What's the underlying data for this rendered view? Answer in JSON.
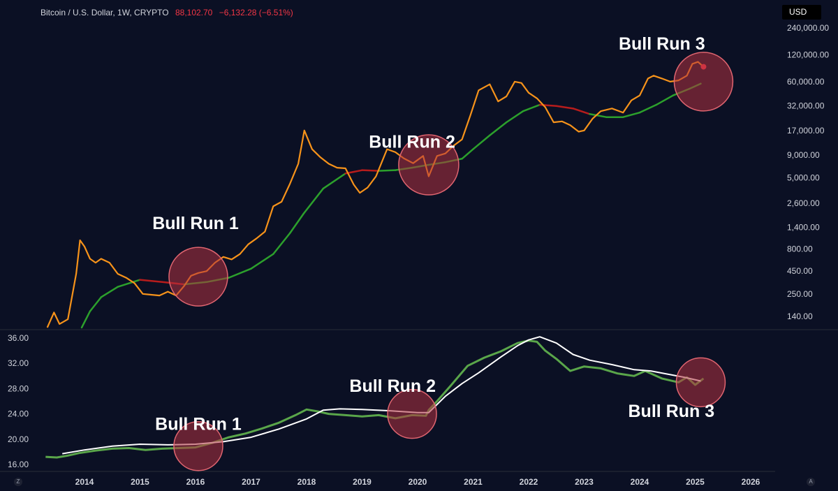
{
  "header": {
    "symbol": "Bitcoin / U.S. Dollar, 1W, CRYPTO",
    "price": "88,102.70",
    "change": "−6,132.28 (−6.51%)"
  },
  "currency_button": "USD",
  "corner_left": "Z",
  "corner_right": "A",
  "colors": {
    "background": "#0b1024",
    "price_line": "#f7931a",
    "ma_green": "#2ca02c",
    "ma_red": "#b71c1c",
    "lower_series": "#5aa64a",
    "lower_ma": "#ffffff",
    "circle_fill": "#b2323f",
    "circle_stroke": "#e06570"
  },
  "chart_data": [
    {
      "type": "line",
      "panel": "upper",
      "title": "",
      "scale": "log",
      "x_ticks": [
        "2014",
        "2015",
        "2016",
        "2017",
        "2018",
        "2019",
        "2020",
        "2021",
        "2022",
        "2023",
        "2024",
        "2025",
        "2026"
      ],
      "y_ticks": [
        "240,000.00",
        "120,000.00",
        "60,000.00",
        "32,000.00",
        "17,000.00",
        "9,000.00",
        "5,000.00",
        "2,600.00",
        "1,400.00",
        "800.00",
        "450.00",
        "250.00",
        "140.00"
      ],
      "ylim": [
        110,
        260000
      ],
      "series": [
        {
          "role": "price",
          "x": [
            2013.33,
            2013.45,
            2013.55,
            2013.7,
            2013.85,
            2013.92,
            2014.0,
            2014.1,
            2014.2,
            2014.3,
            2014.45,
            2014.6,
            2014.75,
            2014.9,
            2015.05,
            2015.2,
            2015.35,
            2015.5,
            2015.65,
            2015.8,
            2015.92,
            2016.05,
            2016.2,
            2016.35,
            2016.5,
            2016.65,
            2016.8,
            2016.95,
            2017.1,
            2017.25,
            2017.4,
            2017.55,
            2017.7,
            2017.85,
            2017.96,
            2018.1,
            2018.25,
            2018.4,
            2018.55,
            2018.7,
            2018.85,
            2018.96,
            2019.1,
            2019.25,
            2019.45,
            2019.6,
            2019.75,
            2019.92,
            2020.1,
            2020.2,
            2020.35,
            2020.5,
            2020.65,
            2020.8,
            2020.95,
            2021.1,
            2021.3,
            2021.45,
            2021.6,
            2021.75,
            2021.87,
            2022.0,
            2022.15,
            2022.3,
            2022.45,
            2022.6,
            2022.75,
            2022.9,
            2023.0,
            2023.15,
            2023.3,
            2023.5,
            2023.7,
            2023.85,
            2024.0,
            2024.15,
            2024.25,
            2024.4,
            2024.55,
            2024.7,
            2024.85,
            2024.95,
            2025.05,
            2025.15
          ],
          "values": [
            105,
            155,
            115,
            130,
            420,
            1000,
            850,
            620,
            560,
            620,
            560,
            420,
            380,
            330,
            250,
            245,
            240,
            265,
            240,
            310,
            400,
            430,
            450,
            560,
            650,
            610,
            700,
            900,
            1050,
            1250,
            2400,
            2700,
            4300,
            7200,
            17000,
            10500,
            8500,
            7200,
            6500,
            6400,
            4200,
            3400,
            3900,
            5200,
            10500,
            9700,
            8300,
            7300,
            8800,
            5200,
            8800,
            9400,
            11500,
            13500,
            25000,
            48000,
            56000,
            36000,
            41000,
            60000,
            58000,
            45000,
            39000,
            31000,
            21000,
            21500,
            19500,
            16500,
            17000,
            23000,
            28000,
            30000,
            27000,
            37000,
            42000,
            65000,
            70000,
            65000,
            60000,
            62000,
            70000,
            95000,
            100000,
            88102.7
          ]
        },
        {
          "role": "moving-average",
          "x": [
            2013.95,
            2014.1,
            2014.3,
            2014.6,
            2015.0,
            2015.4,
            2015.8,
            2016.2,
            2016.6,
            2017.0,
            2017.4,
            2017.7,
            2017.95,
            2018.3,
            2018.7,
            2019.0,
            2019.3,
            2019.6,
            2019.9,
            2020.2,
            2020.5,
            2020.8,
            2021.0,
            2021.3,
            2021.6,
            2021.9,
            2022.2,
            2022.5,
            2022.8,
            2023.1,
            2023.4,
            2023.7,
            2024.0,
            2024.3,
            2024.6,
            2024.9,
            2025.1
          ],
          "values": [
            105,
            160,
            230,
            300,
            360,
            340,
            320,
            340,
            380,
            480,
            700,
            1200,
            2000,
            3800,
            5600,
            6100,
            6000,
            6100,
            6500,
            7000,
            7500,
            8200,
            10500,
            15000,
            21000,
            28000,
            33000,
            32000,
            30000,
            26000,
            24000,
            24000,
            27000,
            33000,
            42000,
            50000,
            57000
          ]
        }
      ],
      "annotations": [
        "Bull Run 1",
        "Bull Run 2",
        "Bull Run 3"
      ]
    },
    {
      "type": "line",
      "panel": "lower",
      "title": "",
      "y_ticks": [
        "36.00",
        "32.00",
        "28.00",
        "24.00",
        "20.00",
        "16.00"
      ],
      "ylim": [
        15.6,
        36.4
      ],
      "series": [
        {
          "role": "indicator",
          "x": [
            2013.3,
            2013.5,
            2013.7,
            2013.9,
            2014.2,
            2014.5,
            2014.8,
            2015.1,
            2015.4,
            2015.7,
            2016.0,
            2016.3,
            2016.6,
            2016.9,
            2017.2,
            2017.5,
            2017.8,
            2018.0,
            2018.2,
            2018.4,
            2018.7,
            2019.0,
            2019.3,
            2019.6,
            2019.9,
            2020.15,
            2020.2,
            2020.35,
            2020.6,
            2020.9,
            2021.2,
            2021.5,
            2021.8,
            2022.0,
            2022.15,
            2022.3,
            2022.5,
            2022.75,
            2023.0,
            2023.3,
            2023.6,
            2023.9,
            2024.1,
            2024.4,
            2024.7,
            2024.85,
            2025.0,
            2025.15
          ],
          "values": [
            17.2,
            17.1,
            17.4,
            17.8,
            18.2,
            18.5,
            18.6,
            18.3,
            18.5,
            18.6,
            18.7,
            19.4,
            20.3,
            20.9,
            21.7,
            22.6,
            23.8,
            24.7,
            24.4,
            24.0,
            23.8,
            23.6,
            23.8,
            23.3,
            23.8,
            23.7,
            24.6,
            26.0,
            28.5,
            31.6,
            32.9,
            33.9,
            35.2,
            35.6,
            35.4,
            34.0,
            32.7,
            30.8,
            31.5,
            31.2,
            30.4,
            30.0,
            30.8,
            29.6,
            29.0,
            29.8,
            28.6,
            29.6
          ]
        },
        {
          "role": "moving-average",
          "x": [
            2013.6,
            2014.0,
            2014.5,
            2015.0,
            2015.5,
            2016.0,
            2016.5,
            2017.0,
            2017.5,
            2018.0,
            2018.3,
            2018.6,
            2019.0,
            2019.5,
            2020.0,
            2020.2,
            2020.5,
            2020.8,
            2021.1,
            2021.5,
            2021.8,
            2022.0,
            2022.2,
            2022.5,
            2022.8,
            2023.1,
            2023.5,
            2023.9,
            2024.2,
            2024.5,
            2024.8,
            2025.1
          ],
          "values": [
            17.7,
            18.3,
            18.9,
            19.2,
            19.1,
            19.2,
            19.6,
            20.3,
            21.6,
            23.2,
            24.6,
            24.8,
            24.7,
            24.5,
            24.2,
            24.2,
            26.8,
            28.8,
            30.5,
            33.0,
            34.8,
            35.7,
            36.2,
            35.2,
            33.4,
            32.5,
            31.8,
            31.0,
            30.8,
            30.3,
            29.8,
            29.2
          ]
        }
      ],
      "annotations": [
        "Bull Run 1",
        "Bull Run 2",
        "Bull Run 3"
      ]
    }
  ]
}
